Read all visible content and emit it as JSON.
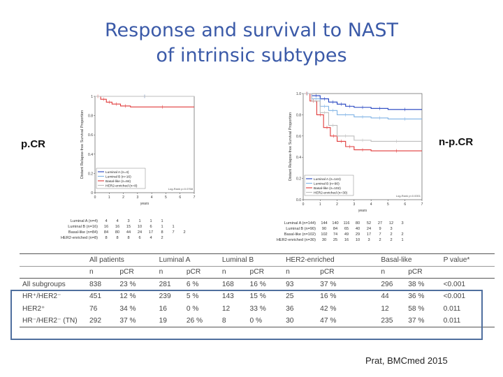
{
  "slide": {
    "title_line1": "Response and survival to NAST",
    "title_line2": "of intrinsic subtypes",
    "left_label": "p.CR",
    "right_label": "n-p.CR",
    "citation": "Prat, BMCmed 2015"
  },
  "colors": {
    "title": "#3b5aa8",
    "luminal_a": "#1f3fbf",
    "luminal_b": "#7fb2e5",
    "basal_like": "#e03a3a",
    "her2_enriched": "#bdbdbd",
    "box_border": "#4f6f9e"
  },
  "chart_data": [
    {
      "type": "line",
      "ylabel": "Distant Relapse-free Survival Proportion",
      "xlabel": "years",
      "xlim": [
        0,
        7
      ],
      "ylim": [
        0,
        1
      ],
      "x_ticks": [
        0,
        1,
        2,
        3,
        4,
        5,
        6,
        7
      ],
      "y_ticks": [
        "0",
        "0.2",
        "0.4",
        "0.6",
        "0.8",
        "1"
      ],
      "legend": [
        "Luminal A (n=4)",
        "Luminal B (n=16)",
        "Basal-like (n=84)",
        "HER2-enriched (n=8)"
      ],
      "legend_position": "bottom-left",
      "pvalue": "Log-Rank p=0.0768",
      "series": [
        {
          "name": "Luminal A (n=4)",
          "x": [
            0,
            7
          ],
          "y": [
            1,
            1
          ]
        },
        {
          "name": "Luminal B (n=16)",
          "x": [
            0,
            7
          ],
          "y": [
            1,
            1
          ]
        },
        {
          "name": "Basal-like (n=84)",
          "x": [
            0,
            0.4,
            0.8,
            1.2,
            1.8,
            2.5,
            7
          ],
          "y": [
            1,
            0.97,
            0.94,
            0.92,
            0.9,
            0.89,
            0.89
          ]
        },
        {
          "name": "HER2-enriched (n=8)",
          "x": [
            0,
            7
          ],
          "y": [
            1,
            1
          ]
        }
      ],
      "risk_table": {
        "rows": [
          {
            "label": "Luminal A (n=4)",
            "values": [
              "4",
              "4",
              "3",
              "1",
              "1",
              "1"
            ]
          },
          {
            "label": "Luminal B (n=16)",
            "values": [
              "16",
              "16",
              "15",
              "10",
              "6",
              "1",
              "1"
            ]
          },
          {
            "label": "Basal-like (n=84)",
            "values": [
              "84",
              "80",
              "44",
              "24",
              "17",
              "8",
              "7",
              "2"
            ]
          },
          {
            "label": "HER2-enriched (n=8)",
            "values": [
              "8",
              "8",
              "8",
              "6",
              "4",
              "2"
            ]
          }
        ]
      }
    },
    {
      "type": "line",
      "ylabel": "Distant Relapse-free Survival Proportion",
      "xlabel": "years",
      "xlim": [
        0,
        7
      ],
      "ylim": [
        0,
        1
      ],
      "x_ticks": [
        0,
        1,
        2,
        3,
        4,
        5,
        6,
        7
      ],
      "y_ticks": [
        "0.0",
        "0.2",
        "0.4",
        "0.6",
        "0.8",
        "1.0"
      ],
      "legend": [
        "Luminal A (n=144)",
        "Luminal B (n=90)",
        "Basal-like (n=102)",
        "HER2-enriched (n=30)"
      ],
      "legend_position": "bottom-left",
      "pvalue": "Log-Rank p<0.0001",
      "series": [
        {
          "name": "Luminal A (n=144)",
          "x": [
            0,
            0.5,
            1,
            1.5,
            2,
            2.5,
            3,
            4,
            5,
            7
          ],
          "y": [
            1,
            0.98,
            0.95,
            0.92,
            0.9,
            0.88,
            0.87,
            0.86,
            0.85,
            0.85
          ]
        },
        {
          "name": "Luminal B (n=90)",
          "x": [
            0,
            0.5,
            1,
            1.5,
            2,
            3,
            4,
            5,
            7
          ],
          "y": [
            1,
            0.95,
            0.88,
            0.84,
            0.8,
            0.78,
            0.77,
            0.76,
            0.76
          ]
        },
        {
          "name": "Basal-like (n=102)",
          "x": [
            0,
            0.4,
            0.8,
            1.2,
            1.6,
            2,
            2.5,
            3,
            4,
            7
          ],
          "y": [
            1,
            0.93,
            0.8,
            0.68,
            0.6,
            0.55,
            0.5,
            0.47,
            0.46,
            0.46
          ]
        },
        {
          "name": "HER2-enriched (n=30)",
          "x": [
            0,
            0.5,
            1,
            1.5,
            2,
            3,
            4,
            7
          ],
          "y": [
            1,
            0.93,
            0.82,
            0.7,
            0.6,
            0.56,
            0.55,
            0.55
          ]
        }
      ],
      "risk_table": {
        "rows": [
          {
            "label": "Luminal A (n=144)",
            "values": [
              "144",
              "140",
              "116",
              "80",
              "52",
              "27",
              "12",
              "3"
            ]
          },
          {
            "label": "Luminal B (n=90)",
            "values": [
              "90",
              "84",
              "65",
              "40",
              "24",
              "9",
              "3"
            ]
          },
          {
            "label": "Basal-like (n=102)",
            "values": [
              "102",
              "74",
              "49",
              "29",
              "17",
              "7",
              "2",
              "2"
            ]
          },
          {
            "label": "HER2-enriched (n=30)",
            "values": [
              "30",
              "25",
              "16",
              "10",
              "3",
              "2",
              "2",
              "1"
            ]
          }
        ]
      }
    },
    {
      "type": "table",
      "group_headers": [
        "All patients",
        "Luminal A",
        "Luminal B",
        "HER2-enriched",
        "Basal-like",
        "P value*"
      ],
      "sub_headers": [
        "n",
        "pCR",
        "n",
        "pCR",
        "n",
        "pCR",
        "n",
        "pCR",
        "n",
        "pCR"
      ],
      "rows": [
        {
          "label": "All subgroups",
          "cells": [
            "838",
            "23 %",
            "281",
            "6 %",
            "168",
            "16 %",
            "93",
            "37 %",
            "296",
            "38 %",
            "<0.001"
          ]
        },
        {
          "label": "HR⁺/HER2⁻",
          "cells": [
            "451",
            "12 %",
            "239",
            "5 %",
            "143",
            "15 %",
            "25",
            "16 %",
            "44",
            "36 %",
            "<0.001"
          ]
        },
        {
          "label": "HER2⁺",
          "cells": [
            "76",
            "34 %",
            "16",
            "0 %",
            "12",
            "33 %",
            "36",
            "42 %",
            "12",
            "58 %",
            "0.011"
          ]
        },
        {
          "label": "HR⁻/HER2⁻ (TN)",
          "cells": [
            "292",
            "37 %",
            "19",
            "26 %",
            "8",
            "0 %",
            "30",
            "47 %",
            "235",
            "37 %",
            "0.011"
          ]
        }
      ]
    }
  ]
}
